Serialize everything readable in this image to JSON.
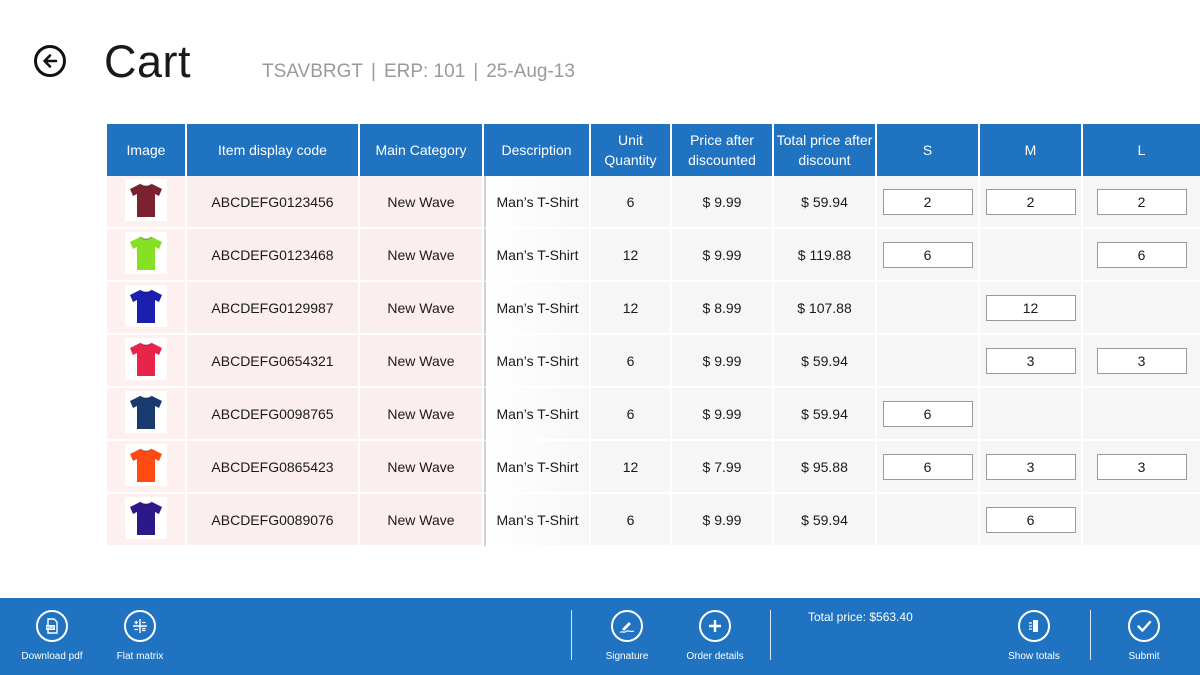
{
  "header": {
    "title": "Cart",
    "store_code": "TSAVBRGT",
    "erp": "ERP: 101",
    "date": "25-Aug-13"
  },
  "table": {
    "columns": [
      "Image",
      "Item display code",
      "Main Category",
      "Description",
      "Unit Quantity",
      "Price after discounted",
      "Total price after discount",
      "S",
      "M",
      "L"
    ],
    "rows": [
      {
        "shirt_color": "#7a2230",
        "code": "ABCDEFG0123456",
        "category": "New Wave",
        "description": "Man’s T-Shirt",
        "unit_qty": "6",
        "price": "$ 9.99",
        "total": "$ 59.94",
        "s": "2",
        "m": "2",
        "l": "2"
      },
      {
        "shirt_color": "#86e024",
        "code": "ABCDEFG0123468",
        "category": "New Wave",
        "description": "Man’s T-Shirt",
        "unit_qty": "12",
        "price": "$ 9.99",
        "total": "$ 119.88",
        "s": "6",
        "m": "",
        "l": "6"
      },
      {
        "shirt_color": "#1a1fb0",
        "code": "ABCDEFG0129987",
        "category": "New Wave",
        "description": "Man’s T-Shirt",
        "unit_qty": "12",
        "price": "$ 8.99",
        "total": "$ 107.88",
        "s": "",
        "m": "12",
        "l": ""
      },
      {
        "shirt_color": "#e8244a",
        "code": "ABCDEFG0654321",
        "category": "New Wave",
        "description": "Man’s T-Shirt",
        "unit_qty": "6",
        "price": "$ 9.99",
        "total": "$ 59.94",
        "s": "",
        "m": "3",
        "l": "3"
      },
      {
        "shirt_color": "#183a6e",
        "code": "ABCDEFG0098765",
        "category": "New Wave",
        "description": "Man’s T-Shirt",
        "unit_qty": "6",
        "price": "$ 9.99",
        "total": "$ 59.94",
        "s": "6",
        "m": "",
        "l": ""
      },
      {
        "shirt_color": "#ff4a12",
        "code": "ABCDEFG0865423",
        "category": "New Wave",
        "description": "Man’s T-Shirt",
        "unit_qty": "12",
        "price": "$ 7.99",
        "total": "$ 95.88",
        "s": "6",
        "m": "3",
        "l": "3"
      },
      {
        "shirt_color": "#2c1888",
        "code": "ABCDEFG0089076",
        "category": "New Wave",
        "description": "Man’s T-Shirt",
        "unit_qty": "6",
        "price": "$ 9.99",
        "total": "$ 59.94",
        "s": "",
        "m": "6",
        "l": ""
      }
    ]
  },
  "app_bar": {
    "download_pdf": {
      "label": "Download pdf",
      "icon": "pdf-icon"
    },
    "flat_matrix": {
      "label": "Flat matrix",
      "icon": "matrix-icon"
    },
    "signature": {
      "label": "Signature",
      "icon": "signature-icon"
    },
    "order_details": {
      "label": "Order details",
      "icon": "plus-icon"
    },
    "total_price": "Total price: $563.40",
    "show_totals": {
      "label": "Show totals",
      "icon": "totals-icon"
    },
    "submit": {
      "label": "Submit",
      "icon": "check-icon"
    }
  }
}
